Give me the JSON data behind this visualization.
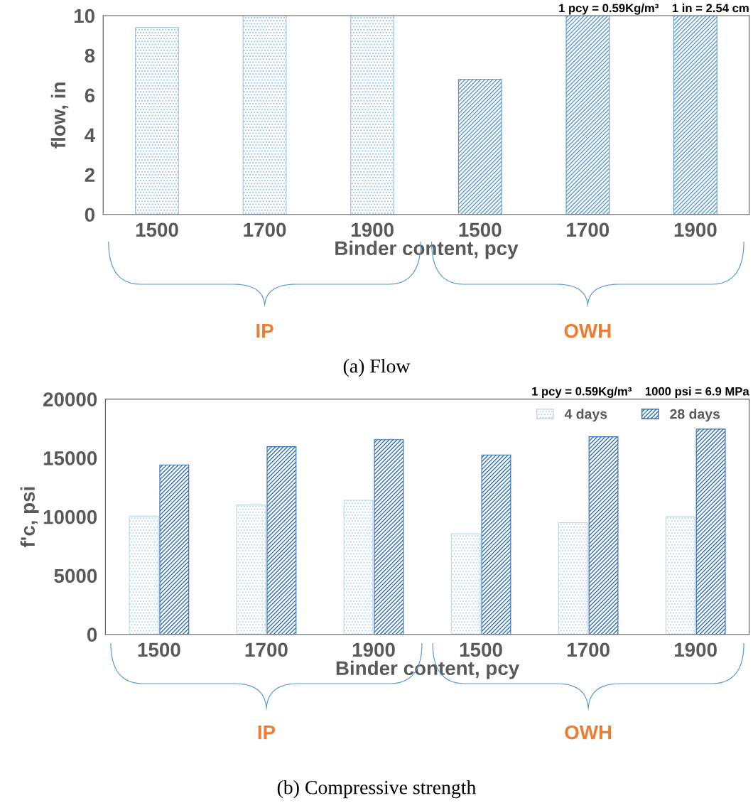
{
  "chart_data": [
    {
      "type": "bar",
      "xlabel": "Binder content, pcy",
      "ylabel": "flow, in",
      "categories": [
        "1500",
        "1700",
        "1900",
        "1500",
        "1700",
        "1900"
      ],
      "values": [
        9.4,
        10,
        10,
        6.8,
        10,
        10
      ],
      "colors": [
        "#9dc3e6",
        "#9dc3e6",
        "#9dc3e6",
        "#5b9bd5",
        "#5b9bd5",
        "#5b9bd5"
      ],
      "ylim": [
        0,
        10
      ],
      "yticks": [
        0,
        2,
        4,
        6,
        8,
        10
      ],
      "grid": false,
      "legend": false,
      "annotations": [
        "1 pcy = 0.59Kg/m³    1 in = 2.54 cm",
        "IP",
        "OWH",
        "(a) Flow"
      ]
    },
    {
      "type": "bar",
      "xlabel": "Binder content, pcy",
      "ylabel": "f'c, psi",
      "categories": [
        "1500",
        "1700",
        "1900",
        "1500",
        "1700",
        "1900"
      ],
      "series": [
        {
          "name": "4 days",
          "color": "#bdd7ee",
          "values": [
            10050,
            11000,
            11400,
            8550,
            9500,
            10000
          ]
        },
        {
          "name": "28 days",
          "color": "#2f6fba",
          "values": [
            14400,
            15950,
            16550,
            15250,
            16800,
            17450
          ]
        }
      ],
      "ylim": [
        0,
        20000
      ],
      "yticks": [
        0,
        5000,
        10000,
        15000,
        20000
      ],
      "grid": false,
      "legend": "top right",
      "annotations": [
        "1 pcy = 0.59Kg/m³    1000 psi = 6.9 MPa",
        "IP",
        "OWH",
        "(b) Compressive strength"
      ]
    }
  ]
}
